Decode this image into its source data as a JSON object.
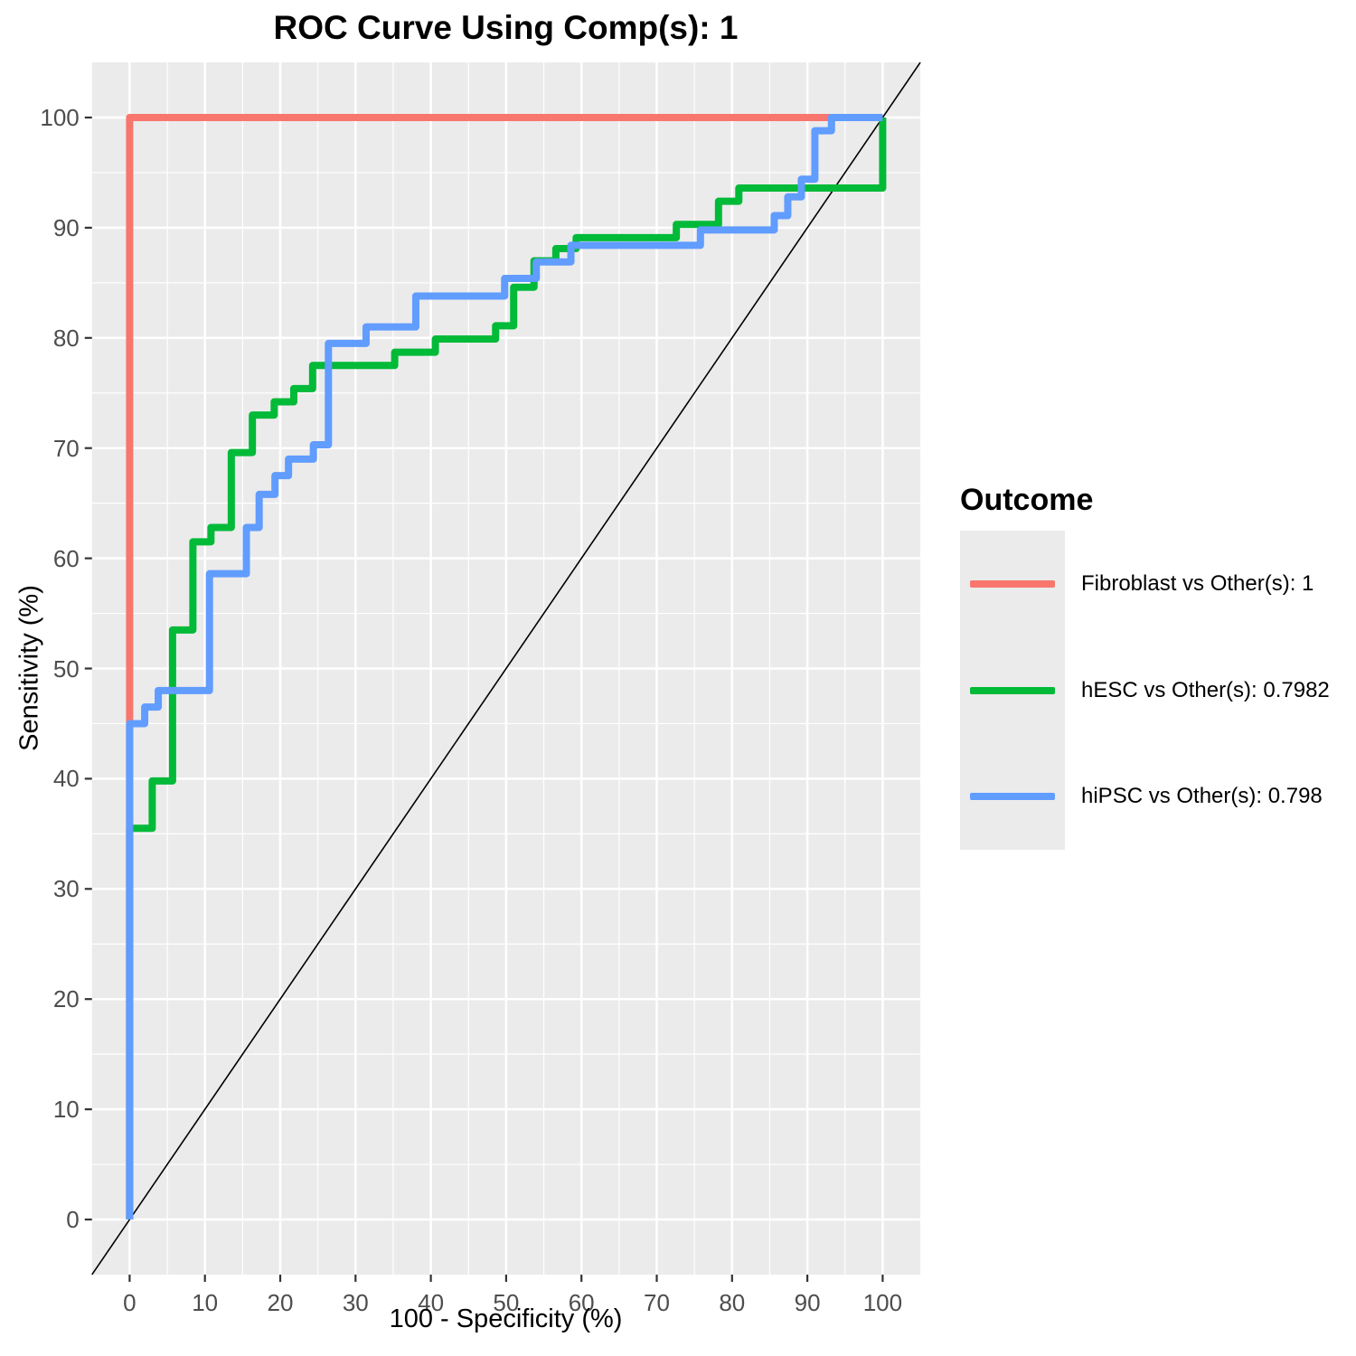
{
  "title": "ROC Curve Using Comp(s): 1",
  "axes": {
    "x_label": "100 - Specificity (%)",
    "y_label": "Sensitivity (%)",
    "x_ticks": [
      "0",
      "10",
      "20",
      "30",
      "40",
      "50",
      "60",
      "70",
      "80",
      "90",
      "100"
    ],
    "y_ticks": [
      "0",
      "10",
      "20",
      "30",
      "40",
      "50",
      "60",
      "70",
      "80",
      "90",
      "100"
    ]
  },
  "legend": {
    "title": "Outcome",
    "entries": [
      {
        "label": "Fibroblast vs Other(s): 1",
        "color": "#F8766D"
      },
      {
        "label": "hESC vs Other(s): 0.7982",
        "color": "#00BA38"
      },
      {
        "label": "hiPSC vs Other(s): 0.798",
        "color": "#619CFF"
      }
    ]
  },
  "colors": {
    "panel_background": "#EBEBEB",
    "gridline": "#FFFFFF",
    "tick_label": "#4D4D4D",
    "tick_mark": "#333333",
    "reference_line": "#000000"
  },
  "chart_data": {
    "type": "line",
    "subtype": "roc-step-curves",
    "title": "ROC Curve Using Comp(s): 1",
    "xlabel": "100 - Specificity (%)",
    "ylabel": "Sensitivity (%)",
    "xlim": [
      -5,
      105
    ],
    "ylim": [
      -5,
      105
    ],
    "x_breaks": [
      0,
      10,
      20,
      30,
      40,
      50,
      60,
      70,
      80,
      90,
      100
    ],
    "y_breaks": [
      0,
      10,
      20,
      30,
      40,
      50,
      60,
      70,
      80,
      90,
      100
    ],
    "minor_breaks": [
      5,
      15,
      25,
      35,
      45,
      55,
      65,
      75,
      85,
      95
    ],
    "grid": true,
    "legend_position": "right",
    "legend_title": "Outcome",
    "reference_line": {
      "type": "diagonal y = x",
      "from": [
        0,
        0
      ],
      "to": [
        100,
        100
      ],
      "color": "#000000"
    },
    "series": [
      {
        "name": "Fibroblast vs Other(s): 1",
        "outcome": "Fibroblast",
        "auc": 1,
        "color": "#F8766D",
        "points": [
          [
            0,
            0
          ],
          [
            0,
            100
          ],
          [
            100,
            100
          ]
        ]
      },
      {
        "name": "hESC vs Other(s): 0.7982",
        "outcome": "hESC",
        "auc": 0.7982,
        "color": "#00BA38",
        "points": [
          [
            0,
            0
          ],
          [
            0,
            35.5
          ],
          [
            3,
            35.5
          ],
          [
            3,
            39.8
          ],
          [
            5.7,
            39.8
          ],
          [
            5.7,
            53.5
          ],
          [
            8.4,
            53.5
          ],
          [
            8.4,
            61.5
          ],
          [
            10.8,
            61.5
          ],
          [
            10.8,
            62.8
          ],
          [
            13.5,
            62.8
          ],
          [
            13.5,
            69.6
          ],
          [
            16.3,
            69.6
          ],
          [
            16.3,
            73
          ],
          [
            19.2,
            73
          ],
          [
            19.2,
            74.2
          ],
          [
            21.8,
            74.2
          ],
          [
            21.8,
            75.4
          ],
          [
            24.3,
            75.4
          ],
          [
            24.3,
            77.5
          ],
          [
            35.2,
            77.5
          ],
          [
            35.2,
            78.7
          ],
          [
            40.6,
            78.7
          ],
          [
            40.6,
            79.9
          ],
          [
            48.6,
            79.9
          ],
          [
            48.6,
            81.1
          ],
          [
            51,
            81.1
          ],
          [
            51,
            84.6
          ],
          [
            53.7,
            84.6
          ],
          [
            53.7,
            87
          ],
          [
            56.6,
            87
          ],
          [
            56.6,
            88.1
          ],
          [
            59.3,
            88.1
          ],
          [
            59.3,
            89.1
          ],
          [
            72.6,
            89.1
          ],
          [
            72.6,
            90.3
          ],
          [
            78.2,
            90.3
          ],
          [
            78.2,
            92.4
          ],
          [
            80.9,
            92.4
          ],
          [
            80.9,
            93.6
          ],
          [
            100,
            93.6
          ],
          [
            100,
            100
          ]
        ]
      },
      {
        "name": "hiPSC vs Other(s): 0.798",
        "outcome": "hiPSC",
        "auc": 0.798,
        "color": "#619CFF",
        "points": [
          [
            0,
            0
          ],
          [
            0,
            45
          ],
          [
            2,
            45
          ],
          [
            2,
            46.5
          ],
          [
            3.8,
            46.5
          ],
          [
            3.8,
            48
          ],
          [
            10.6,
            48
          ],
          [
            10.6,
            58.6
          ],
          [
            15.5,
            58.6
          ],
          [
            15.5,
            62.8
          ],
          [
            17.2,
            62.8
          ],
          [
            17.2,
            65.8
          ],
          [
            19.3,
            65.8
          ],
          [
            19.3,
            67.5
          ],
          [
            21.1,
            67.5
          ],
          [
            21.1,
            69
          ],
          [
            24.4,
            69
          ],
          [
            24.4,
            70.3
          ],
          [
            26.4,
            70.3
          ],
          [
            26.4,
            79.5
          ],
          [
            31.4,
            79.5
          ],
          [
            31.4,
            81
          ],
          [
            38,
            81
          ],
          [
            38,
            83.8
          ],
          [
            49.8,
            83.8
          ],
          [
            49.8,
            85.4
          ],
          [
            54,
            85.4
          ],
          [
            54,
            86.9
          ],
          [
            58.6,
            86.9
          ],
          [
            58.6,
            88.4
          ],
          [
            75.8,
            88.4
          ],
          [
            75.8,
            89.8
          ],
          [
            85.6,
            89.8
          ],
          [
            85.6,
            91.1
          ],
          [
            87.4,
            91.1
          ],
          [
            87.4,
            92.8
          ],
          [
            89.2,
            92.8
          ],
          [
            89.2,
            94.4
          ],
          [
            91,
            94.4
          ],
          [
            91,
            98.8
          ],
          [
            93.2,
            98.8
          ],
          [
            93.2,
            100
          ],
          [
            100,
            100
          ]
        ]
      }
    ]
  }
}
